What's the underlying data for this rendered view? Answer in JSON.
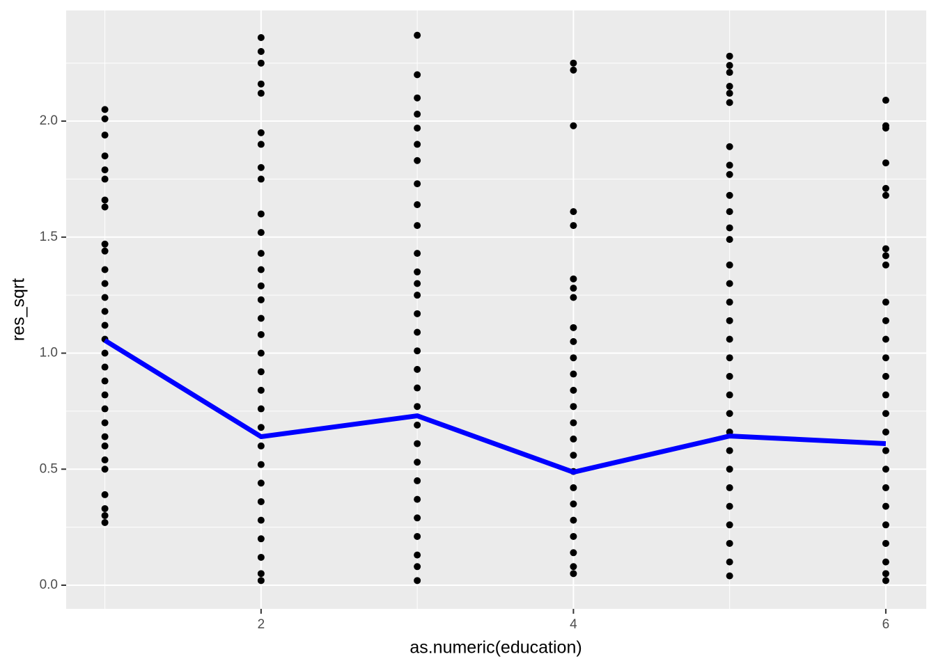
{
  "chart_data": {
    "type": "scatter",
    "xlabel": "as.numeric(education)",
    "ylabel": "res_sqrt",
    "xlim": [
      0.752,
      6.259
    ],
    "ylim": [
      -0.102,
      2.477
    ],
    "xticks": [
      2,
      4,
      6
    ],
    "yticks": [
      {
        "value": 0,
        "label": "0.0"
      },
      0.5,
      {
        "value": 1,
        "label": "1.0"
      },
      1.5,
      {
        "value": 2,
        "label": "2.0"
      }
    ],
    "xminor": [
      1,
      3,
      5
    ],
    "yminor": [
      0.25,
      0.75,
      1.25,
      1.75,
      2.25
    ],
    "grid": true,
    "panel_color": "#ebebeb",
    "series": [
      {
        "type": "scatter",
        "color": "#000000",
        "x": [
          1,
          1,
          1,
          1,
          1,
          1,
          1,
          1,
          1,
          1,
          1,
          1,
          1,
          1,
          1,
          1,
          1,
          1,
          1,
          1,
          1,
          1,
          1,
          1,
          1,
          1,
          1,
          1,
          1,
          1
        ],
        "values": [
          2.05,
          2.01,
          1.94,
          1.85,
          1.79,
          1.75,
          1.66,
          1.63,
          1.47,
          1.44,
          1.36,
          1.3,
          1.24,
          1.18,
          1.12,
          1.06,
          1.0,
          0.94,
          0.88,
          0.82,
          0.76,
          0.7,
          0.64,
          0.6,
          0.54,
          0.5,
          0.39,
          0.33,
          0.3,
          0.27
        ]
      },
      {
        "type": "scatter",
        "color": "#000000",
        "x": [
          2,
          2,
          2,
          2,
          2,
          2,
          2,
          2,
          2,
          2,
          2,
          2,
          2,
          2,
          2,
          2,
          2,
          2,
          2,
          2,
          2,
          2,
          2,
          2,
          2,
          2,
          2,
          2,
          2,
          2,
          2
        ],
        "values": [
          2.36,
          2.3,
          2.25,
          2.16,
          2.12,
          1.95,
          1.9,
          1.8,
          1.75,
          1.6,
          1.52,
          1.43,
          1.36,
          1.29,
          1.23,
          1.15,
          1.08,
          1.0,
          0.92,
          0.84,
          0.76,
          0.68,
          0.6,
          0.52,
          0.44,
          0.36,
          0.28,
          0.2,
          0.12,
          0.05,
          0.02
        ]
      },
      {
        "type": "scatter",
        "color": "#000000",
        "x": [
          3,
          3,
          3,
          3,
          3,
          3,
          3,
          3,
          3,
          3,
          3,
          3,
          3,
          3,
          3,
          3,
          3,
          3,
          3,
          3,
          3,
          3,
          3,
          3,
          3,
          3,
          3,
          3,
          3,
          3
        ],
        "values": [
          2.37,
          2.2,
          2.1,
          2.03,
          1.97,
          1.9,
          1.83,
          1.73,
          1.64,
          1.55,
          1.43,
          1.35,
          1.3,
          1.25,
          1.17,
          1.09,
          1.01,
          0.93,
          0.85,
          0.77,
          0.69,
          0.61,
          0.53,
          0.45,
          0.37,
          0.29,
          0.21,
          0.13,
          0.08,
          0.02
        ]
      },
      {
        "type": "scatter",
        "color": "#000000",
        "x": [
          4,
          4,
          4,
          4,
          4,
          4,
          4,
          4,
          4,
          4,
          4,
          4,
          4,
          4,
          4,
          4,
          4,
          4,
          4,
          4,
          4,
          4,
          4,
          4,
          4
        ],
        "values": [
          2.25,
          2.22,
          1.98,
          1.61,
          1.55,
          1.32,
          1.28,
          1.24,
          1.11,
          1.05,
          0.98,
          0.91,
          0.84,
          0.77,
          0.7,
          0.63,
          0.56,
          0.49,
          0.42,
          0.35,
          0.28,
          0.21,
          0.14,
          0.08,
          0.05
        ]
      },
      {
        "type": "scatter",
        "color": "#000000",
        "x": [
          5,
          5,
          5,
          5,
          5,
          5,
          5,
          5,
          5,
          5,
          5,
          5,
          5,
          5,
          5,
          5,
          5,
          5,
          5,
          5,
          5,
          5,
          5,
          5,
          5,
          5,
          5,
          5,
          5,
          5,
          5
        ],
        "values": [
          2.28,
          2.24,
          2.21,
          2.15,
          2.12,
          2.08,
          1.89,
          1.81,
          1.77,
          1.68,
          1.61,
          1.54,
          1.49,
          1.38,
          1.3,
          1.22,
          1.14,
          1.06,
          0.98,
          0.9,
          0.82,
          0.74,
          0.66,
          0.58,
          0.5,
          0.42,
          0.34,
          0.26,
          0.18,
          0.1,
          0.04
        ]
      },
      {
        "type": "scatter",
        "color": "#000000",
        "x": [
          6,
          6,
          6,
          6,
          6,
          6,
          6,
          6,
          6,
          6,
          6,
          6,
          6,
          6,
          6,
          6,
          6,
          6,
          6,
          6,
          6,
          6,
          6,
          6,
          6,
          6
        ],
        "values": [
          2.09,
          1.98,
          1.97,
          1.82,
          1.71,
          1.68,
          1.45,
          1.42,
          1.38,
          1.22,
          1.14,
          1.06,
          0.98,
          0.9,
          0.82,
          0.74,
          0.66,
          0.58,
          0.5,
          0.42,
          0.34,
          0.26,
          0.18,
          0.1,
          0.05,
          0.02
        ]
      },
      {
        "type": "line",
        "color": "#0000ff",
        "x": [
          1,
          2,
          3,
          4,
          5,
          6
        ],
        "values": [
          1.055,
          0.64,
          0.73,
          0.487,
          0.643,
          0.61
        ]
      }
    ]
  }
}
